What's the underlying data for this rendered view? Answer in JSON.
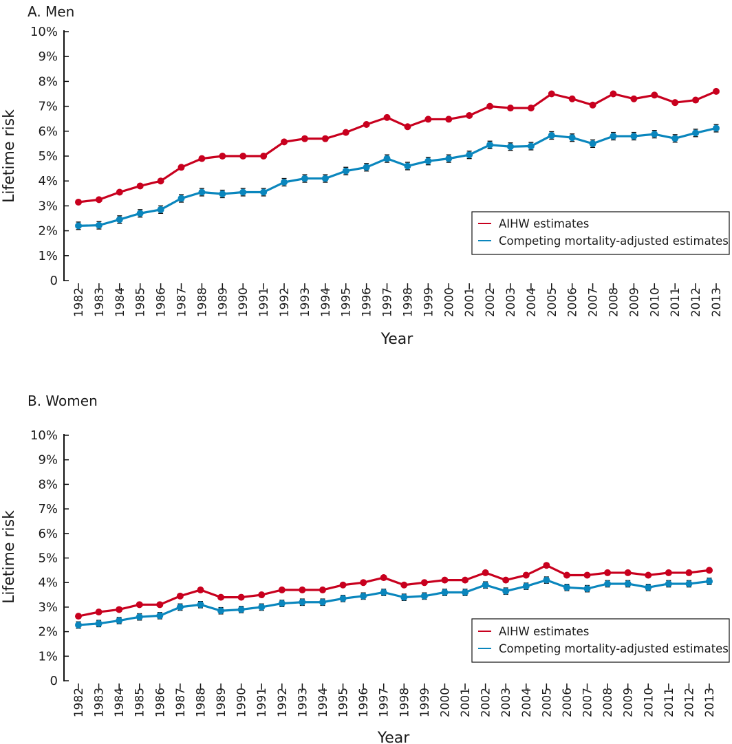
{
  "chart_data": [
    {
      "type": "line",
      "title": "A. Men",
      "xlabel": "Year",
      "ylabel": "Lifetime risk",
      "ylim": [
        0,
        10
      ],
      "yticks": [
        "0",
        "1%",
        "2%",
        "3%",
        "4%",
        "5%",
        "6%",
        "7%",
        "8%",
        "9%",
        "10%"
      ],
      "x": [
        1982,
        1983,
        1984,
        1985,
        1986,
        1987,
        1988,
        1989,
        1990,
        1991,
        1992,
        1993,
        1994,
        1995,
        1996,
        1997,
        1998,
        1999,
        2000,
        2001,
        2002,
        2003,
        2004,
        2005,
        2006,
        2007,
        2008,
        2009,
        2010,
        2011,
        2012,
        2013
      ],
      "legend_position": "right",
      "series": [
        {
          "name": "AIHW estimates",
          "color": "#c8001e",
          "error_bars": false,
          "values": [
            3.15,
            3.25,
            3.55,
            3.8,
            4.0,
            4.55,
            4.9,
            5.0,
            5.0,
            5.0,
            5.57,
            5.7,
            5.7,
            5.95,
            6.27,
            6.55,
            6.18,
            6.48,
            6.48,
            6.63,
            7.0,
            6.93,
            6.93,
            7.5,
            7.3,
            7.05,
            7.5,
            7.3,
            7.45,
            7.15,
            7.25,
            7.6
          ]
        },
        {
          "name": "Competing mortality-adjusted estimates",
          "color": "#0a86bd",
          "error_bars": true,
          "error": 0.15,
          "values": [
            2.2,
            2.22,
            2.45,
            2.7,
            2.85,
            3.3,
            3.55,
            3.48,
            3.55,
            3.55,
            3.95,
            4.1,
            4.1,
            4.4,
            4.55,
            4.9,
            4.6,
            4.8,
            4.9,
            5.05,
            5.45,
            5.38,
            5.4,
            5.83,
            5.74,
            5.5,
            5.8,
            5.8,
            5.88,
            5.71,
            5.93,
            6.12
          ]
        }
      ]
    },
    {
      "type": "line",
      "title": "B. Women",
      "xlabel": "Year",
      "ylabel": "Lifetime risk",
      "ylim": [
        0,
        10
      ],
      "yticks": [
        "0",
        "1%",
        "2%",
        "3%",
        "4%",
        "5%",
        "6%",
        "7%",
        "8%",
        "9%",
        "10%"
      ],
      "x": [
        1982,
        1983,
        1984,
        1985,
        1986,
        1987,
        1988,
        1989,
        1990,
        1991,
        1992,
        1993,
        1994,
        1995,
        1996,
        1997,
        1998,
        1999,
        2000,
        2001,
        2002,
        2003,
        2004,
        2005,
        2006,
        2007,
        2008,
        2009,
        2010,
        2011,
        2012,
        2013
      ],
      "legend_position": "right",
      "series": [
        {
          "name": "AIHW estimates",
          "color": "#c8001e",
          "error_bars": false,
          "values": [
            2.63,
            2.8,
            2.9,
            3.1,
            3.1,
            3.45,
            3.7,
            3.4,
            3.4,
            3.5,
            3.7,
            3.7,
            3.7,
            3.9,
            4.0,
            4.2,
            3.9,
            4.0,
            4.1,
            4.1,
            4.4,
            4.1,
            4.3,
            4.7,
            4.3,
            4.3,
            4.4,
            4.4,
            4.3,
            4.4,
            4.4,
            4.5
          ]
        },
        {
          "name": "Competing mortality-adjusted estimates",
          "color": "#0a86bd",
          "error_bars": true,
          "error": 0.13,
          "values": [
            2.27,
            2.33,
            2.45,
            2.6,
            2.65,
            3.0,
            3.1,
            2.85,
            2.9,
            3.0,
            3.15,
            3.2,
            3.2,
            3.35,
            3.45,
            3.6,
            3.4,
            3.45,
            3.6,
            3.6,
            3.9,
            3.65,
            3.85,
            4.1,
            3.8,
            3.75,
            3.95,
            3.95,
            3.8,
            3.95,
            3.95,
            4.05
          ]
        }
      ]
    }
  ]
}
